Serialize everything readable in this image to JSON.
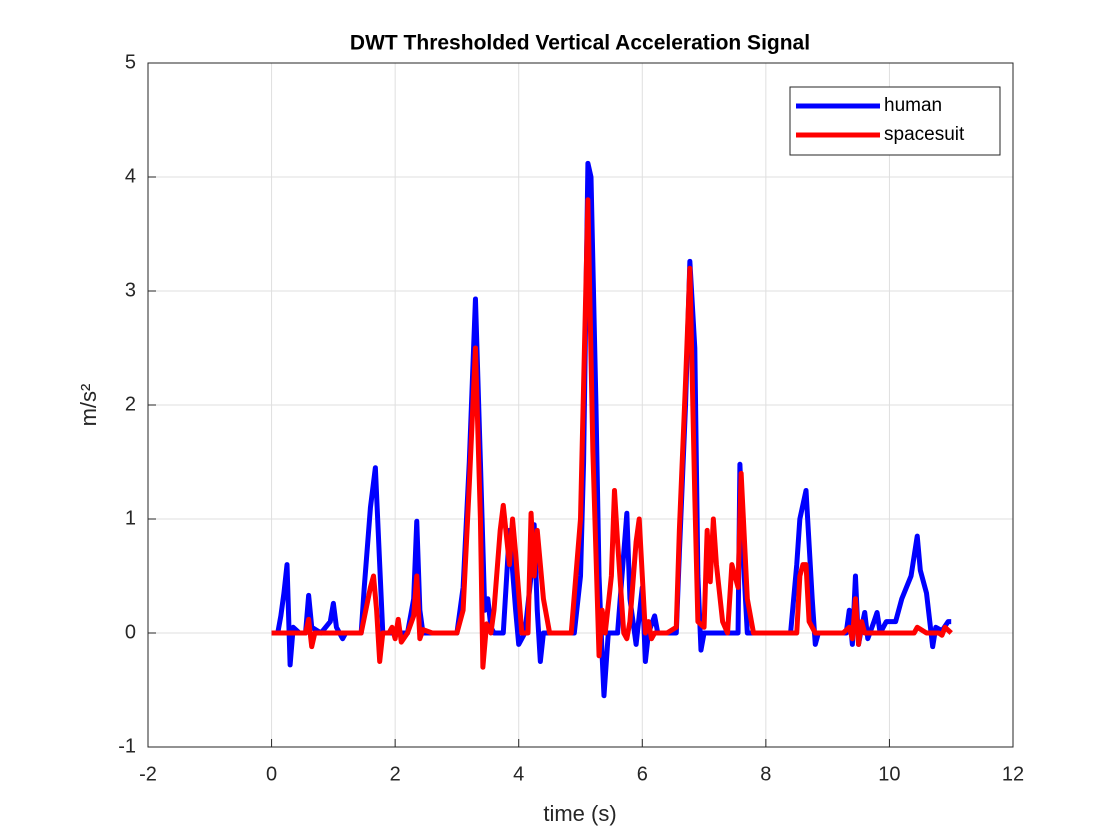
{
  "chart_data": {
    "type": "line",
    "title": "DWT Thresholded Vertical Acceleration Signal",
    "xlabel": "time (s)",
    "ylabel": "m/s²",
    "xlim": [
      -2,
      12
    ],
    "xticks": [
      -2,
      0,
      2,
      4,
      6,
      8,
      10,
      12
    ],
    "ylim": [
      -1,
      5
    ],
    "yticks": [
      -1,
      0,
      1,
      2,
      3,
      4,
      5
    ],
    "grid": true,
    "legend": "northeast",
    "series": [
      {
        "name": "human",
        "color": "#0000ff",
        "x": [
          0,
          0.1,
          0.15,
          0.2,
          0.25,
          0.3,
          0.35,
          0.45,
          0.55,
          0.6,
          0.65,
          0.8,
          0.95,
          1.0,
          1.05,
          1.15,
          1.2,
          1.45,
          1.5,
          1.6,
          1.68,
          1.75,
          1.8,
          2.2,
          2.3,
          2.35,
          2.4,
          2.45,
          3.0,
          3.1,
          3.2,
          3.3,
          3.38,
          3.45,
          3.5,
          3.55,
          3.6,
          3.75,
          3.85,
          3.95,
          4.0,
          4.1,
          4.2,
          4.25,
          4.3,
          4.35,
          4.4,
          4.9,
          5.0,
          5.05,
          5.12,
          5.17,
          5.25,
          5.3,
          5.35,
          5.38,
          5.45,
          5.6,
          5.7,
          5.75,
          5.8,
          5.9,
          6.0,
          6.05,
          6.1,
          6.2,
          6.25,
          6.55,
          6.6,
          6.7,
          6.77,
          6.85,
          6.9,
          6.95,
          7.0,
          7.55,
          7.58,
          7.65,
          7.7,
          8.4,
          8.5,
          8.55,
          8.65,
          8.75,
          8.8,
          8.85,
          9.3,
          9.35,
          9.4,
          9.45,
          9.5,
          9.55,
          9.6,
          9.65,
          9.75,
          9.8,
          9.85,
          9.95,
          10.1,
          10.2,
          10.35,
          10.45,
          10.5,
          10.6,
          10.7,
          10.75,
          10.85,
          10.95,
          11.0
        ],
        "values": [
          0,
          0,
          0.15,
          0.35,
          0.6,
          -0.28,
          0.05,
          0,
          0,
          0.33,
          0.05,
          0,
          0.1,
          0.26,
          0.05,
          -0.05,
          0,
          0,
          0.4,
          1.1,
          1.45,
          0.6,
          0,
          0,
          0.3,
          0.98,
          0.2,
          0,
          0,
          0.4,
          1.5,
          2.93,
          1.5,
          0.2,
          0.3,
          0.05,
          0,
          0,
          0.9,
          0.2,
          -0.1,
          0,
          0.5,
          0.95,
          0.2,
          -0.25,
          0,
          0,
          0.5,
          1.5,
          4.12,
          4.0,
          2.0,
          0.5,
          -0.2,
          -0.55,
          0,
          0,
          0.7,
          1.05,
          0.3,
          -0.1,
          0.4,
          -0.25,
          0,
          0.15,
          0,
          0,
          0.7,
          2.0,
          3.26,
          2.5,
          0.5,
          -0.15,
          0,
          0,
          1.48,
          0.5,
          0,
          0,
          0.6,
          1.0,
          1.25,
          0.3,
          -0.1,
          0,
          0,
          0.2,
          -0.1,
          0.5,
          -0.1,
          0.05,
          0.18,
          -0.05,
          0.1,
          0.18,
          0,
          0.1,
          0.1,
          0.3,
          0.5,
          0.85,
          0.55,
          0.35,
          -0.12,
          0.05,
          0.02,
          0.1,
          0.1
        ]
      },
      {
        "name": "spacesuit",
        "color": "#ff0000",
        "x": [
          0,
          0.55,
          0.6,
          0.65,
          0.7,
          1.45,
          1.6,
          1.65,
          1.7,
          1.75,
          1.8,
          1.9,
          1.95,
          2.0,
          2.05,
          2.1,
          2.2,
          2.3,
          2.35,
          2.4,
          2.45,
          2.6,
          3.0,
          3.1,
          3.2,
          3.3,
          3.38,
          3.42,
          3.48,
          3.55,
          3.6,
          3.7,
          3.75,
          3.85,
          3.9,
          3.95,
          4.05,
          4.15,
          4.2,
          4.25,
          4.3,
          4.4,
          4.5,
          4.85,
          5.0,
          5.12,
          5.2,
          5.3,
          5.35,
          5.4,
          5.5,
          5.55,
          5.6,
          5.7,
          5.75,
          5.8,
          5.9,
          5.95,
          6.0,
          6.05,
          6.1,
          6.15,
          6.2,
          6.4,
          6.55,
          6.6,
          6.7,
          6.77,
          6.85,
          6.9,
          7.0,
          7.05,
          7.1,
          7.15,
          7.2,
          7.3,
          7.38,
          7.45,
          7.5,
          7.55,
          7.6,
          7.7,
          7.8,
          8.5,
          8.55,
          8.6,
          8.65,
          8.7,
          8.8,
          9.25,
          9.35,
          9.4,
          9.45,
          9.5,
          9.55,
          9.6,
          10.0,
          10.4,
          10.45,
          10.6,
          10.8,
          10.85,
          10.9,
          11.0
        ],
        "values": [
          0,
          0,
          0.12,
          -0.12,
          0,
          0,
          0.4,
          0.5,
          0.2,
          -0.25,
          0,
          0,
          0.05,
          -0.05,
          0.12,
          -0.08,
          0,
          0.15,
          0.5,
          -0.05,
          0.03,
          0,
          0,
          0.2,
          1.3,
          2.5,
          1.0,
          -0.3,
          0.08,
          0,
          0.2,
          0.9,
          1.12,
          0.6,
          1.0,
          0.7,
          0,
          0,
          1.05,
          0.5,
          0.9,
          0.3,
          0,
          0,
          1.0,
          3.8,
          1.6,
          -0.2,
          0.2,
          0,
          0.5,
          1.25,
          0.8,
          0,
          -0.05,
          0.1,
          0.8,
          1.0,
          0.5,
          0,
          0.1,
          -0.05,
          0,
          0,
          0.05,
          0.9,
          2.2,
          3.2,
          1.2,
          0.1,
          0.05,
          0.9,
          0.45,
          1.0,
          0.6,
          0.1,
          0,
          0.6,
          0.5,
          0.4,
          1.4,
          0.3,
          0,
          0,
          0.5,
          0.6,
          0.6,
          0.1,
          0,
          0,
          0.05,
          -0.05,
          0.3,
          -0.1,
          0.1,
          0,
          0,
          0,
          0.05,
          0,
          0,
          -0.02,
          0.05,
          0
        ]
      }
    ]
  }
}
